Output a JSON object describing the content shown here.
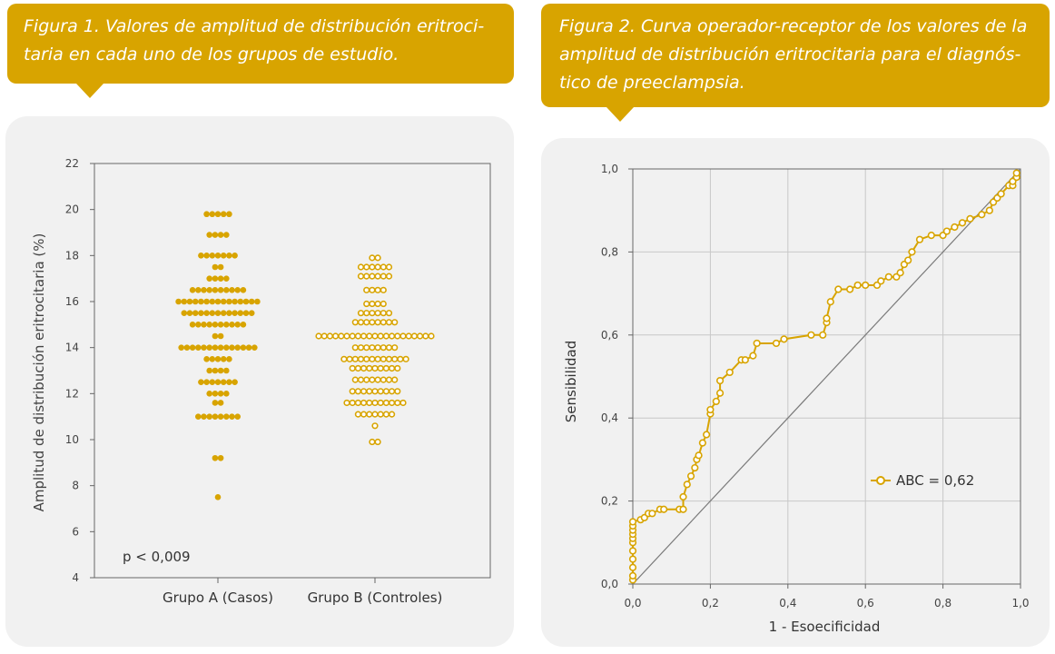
{
  "figure1": {
    "caption_line1": "Figura 1. Valores de amplitud de distribución eritroci-",
    "caption_line2": "taria en cada uno de los grupos de estudio.",
    "chart_data": {
      "type": "scatter",
      "ylabel": "Amplitud de distribución eritrocitaria (%)",
      "ylim": [
        4,
        22
      ],
      "yticks": [
        "4",
        "6",
        "8",
        "10",
        "12",
        "14",
        "16",
        "18",
        "20",
        "22"
      ],
      "categories": [
        "Grupo A (Casos)",
        "Grupo B (Controles)"
      ],
      "annotation": "p < 0,009",
      "series": [
        {
          "marker": "filled",
          "rows": [
            {
              "y": 19.8,
              "n": 5
            },
            {
              "y": 18.9,
              "n": 4
            },
            {
              "y": 18.0,
              "n": 7
            },
            {
              "y": 17.5,
              "n": 2
            },
            {
              "y": 17.0,
              "n": 4
            },
            {
              "y": 16.5,
              "n": 10
            },
            {
              "y": 16.0,
              "n": 15
            },
            {
              "y": 15.5,
              "n": 13
            },
            {
              "y": 15.0,
              "n": 10
            },
            {
              "y": 14.5,
              "n": 2
            },
            {
              "y": 14.0,
              "n": 14
            },
            {
              "y": 13.5,
              "n": 5
            },
            {
              "y": 13.0,
              "n": 4
            },
            {
              "y": 12.5,
              "n": 7
            },
            {
              "y": 12.0,
              "n": 4
            },
            {
              "y": 11.6,
              "n": 2
            },
            {
              "y": 11.0,
              "n": 8
            },
            {
              "y": 9.2,
              "n": 2
            },
            {
              "y": 7.5,
              "n": 1
            }
          ]
        },
        {
          "marker": "hollow",
          "rows": [
            {
              "y": 17.9,
              "n": 2
            },
            {
              "y": 17.5,
              "n": 6
            },
            {
              "y": 17.1,
              "n": 6
            },
            {
              "y": 16.5,
              "n": 4
            },
            {
              "y": 15.9,
              "n": 4
            },
            {
              "y": 15.5,
              "n": 6
            },
            {
              "y": 15.1,
              "n": 8
            },
            {
              "y": 14.5,
              "n": 21
            },
            {
              "y": 14.0,
              "n": 8
            },
            {
              "y": 13.5,
              "n": 12
            },
            {
              "y": 13.1,
              "n": 9
            },
            {
              "y": 12.6,
              "n": 8
            },
            {
              "y": 12.1,
              "n": 9
            },
            {
              "y": 11.6,
              "n": 11
            },
            {
              "y": 11.1,
              "n": 7
            },
            {
              "y": 10.6,
              "n": 1
            },
            {
              "y": 9.9,
              "n": 2
            }
          ]
        }
      ]
    }
  },
  "figure2": {
    "caption_line1": "Figura 2. Curva operador-receptor de los valores de la",
    "caption_line2": "amplitud de distribución eritrocitaria para el diagnós-",
    "caption_line3": "tico de preeclampsia.",
    "chart_data": {
      "type": "line",
      "xlabel": "1 - Esoecificidad",
      "ylabel": "Sensibilidad",
      "xlim": [
        0,
        1
      ],
      "ylim": [
        0,
        1
      ],
      "xticks": [
        "0,0",
        "0,2",
        "0,4",
        "0,6",
        "0,8",
        "1,0"
      ],
      "yticks": [
        "0,0",
        "0,2",
        "0,4",
        "0,6",
        "0,8",
        "1,0"
      ],
      "grid": true,
      "legend_position": "lower-right",
      "series": [
        {
          "name": "ABC = 0,62",
          "x": [
            0.0,
            0.0,
            0.0,
            0.0,
            0.0,
            0.0,
            0.0,
            0.0,
            0.0,
            0.0,
            0.0,
            0.02,
            0.03,
            0.04,
            0.05,
            0.07,
            0.08,
            0.12,
            0.13,
            0.13,
            0.14,
            0.15,
            0.16,
            0.165,
            0.17,
            0.18,
            0.19,
            0.2,
            0.2,
            0.215,
            0.225,
            0.225,
            0.25,
            0.28,
            0.29,
            0.31,
            0.32,
            0.37,
            0.39,
            0.46,
            0.49,
            0.5,
            0.5,
            0.51,
            0.53,
            0.56,
            0.58,
            0.6,
            0.63,
            0.64,
            0.66,
            0.68,
            0.69,
            0.7,
            0.71,
            0.72,
            0.74,
            0.77,
            0.8,
            0.81,
            0.83,
            0.85,
            0.87,
            0.9,
            0.92,
            0.93,
            0.94,
            0.95,
            0.97,
            0.98,
            0.98,
            0.99,
            0.99
          ],
          "y": [
            0.01,
            0.02,
            0.04,
            0.06,
            0.08,
            0.1,
            0.11,
            0.12,
            0.13,
            0.14,
            0.15,
            0.155,
            0.16,
            0.17,
            0.17,
            0.18,
            0.18,
            0.18,
            0.18,
            0.21,
            0.24,
            0.26,
            0.28,
            0.3,
            0.31,
            0.34,
            0.36,
            0.41,
            0.42,
            0.44,
            0.46,
            0.49,
            0.51,
            0.54,
            0.54,
            0.55,
            0.58,
            0.58,
            0.59,
            0.6,
            0.6,
            0.63,
            0.64,
            0.68,
            0.71,
            0.71,
            0.72,
            0.72,
            0.72,
            0.73,
            0.74,
            0.74,
            0.75,
            0.77,
            0.78,
            0.8,
            0.83,
            0.84,
            0.84,
            0.85,
            0.86,
            0.87,
            0.88,
            0.89,
            0.9,
            0.92,
            0.93,
            0.94,
            0.96,
            0.96,
            0.97,
            0.98,
            0.99
          ]
        },
        {
          "name": "",
          "x": [
            0,
            1
          ],
          "y": [
            0,
            1
          ]
        }
      ]
    }
  },
  "colors": {
    "accent": "#d8a400",
    "panel": "#f1f1f1",
    "axis": "#666666",
    "grid": "#c8c8c8",
    "diagonal": "#7a7a7a"
  }
}
